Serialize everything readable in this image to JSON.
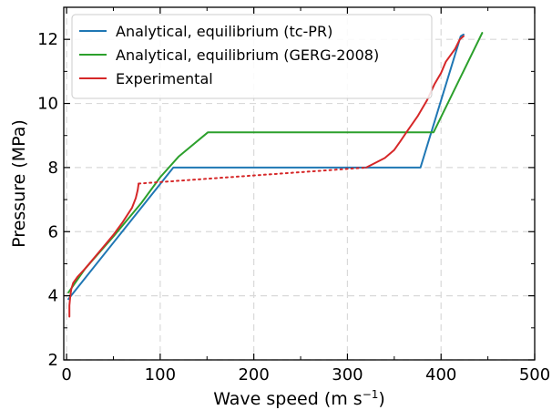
{
  "chart_data": {
    "type": "line",
    "title": "",
    "xlabel": "Wave speed (m s",
    "xlabel_sup": "−1",
    "xlabel_close": ")",
    "ylabel": "Pressure (MPa)",
    "xlim": [
      -3,
      500
    ],
    "ylim": [
      2,
      13
    ],
    "xticks": [
      0,
      100,
      200,
      300,
      400,
      500
    ],
    "yticks": [
      2,
      4,
      6,
      8,
      10,
      12
    ],
    "grid": true,
    "legend_position": "top-left",
    "series": [
      {
        "name": "Analytical, equilibrium (tc-PR)",
        "color": "#1f77b4",
        "style": "solid",
        "x": [
          2,
          114,
          378,
          421,
          424
        ],
        "y": [
          3.9,
          8.0,
          8.0,
          12.1,
          12.15
        ]
      },
      {
        "name": "Analytical, equilibrium (GERG-2008)",
        "color": "#2ca02c",
        "style": "solid",
        "x": [
          2,
          20,
          50,
          80,
          100,
          120,
          151,
          392,
          444
        ],
        "y": [
          4.1,
          4.85,
          5.85,
          6.9,
          7.7,
          8.35,
          9.1,
          9.1,
          12.2
        ]
      },
      {
        "name": "Experimental",
        "color": "#d62728",
        "style": "solid",
        "x": [
          3,
          3,
          4,
          5,
          7,
          12,
          20,
          30,
          40,
          50,
          60,
          70,
          74,
          76,
          77
        ],
        "y": [
          3.35,
          3.7,
          4.0,
          4.2,
          4.4,
          4.6,
          4.85,
          5.2,
          5.55,
          5.9,
          6.3,
          6.75,
          7.05,
          7.3,
          7.5
        ]
      },
      {
        "name": "",
        "color": "#d62728",
        "style": "dotted",
        "x": [
          77,
          320
        ],
        "y": [
          7.5,
          8.0
        ]
      },
      {
        "name": "",
        "color": "#d62728",
        "style": "solid",
        "x": [
          320,
          330,
          340,
          350,
          356,
          363,
          375,
          385,
          393,
          400,
          405,
          415,
          420,
          424
        ],
        "y": [
          8.0,
          8.15,
          8.3,
          8.55,
          8.8,
          9.1,
          9.6,
          10.1,
          10.6,
          10.95,
          11.3,
          11.7,
          12.0,
          12.1
        ]
      }
    ]
  }
}
